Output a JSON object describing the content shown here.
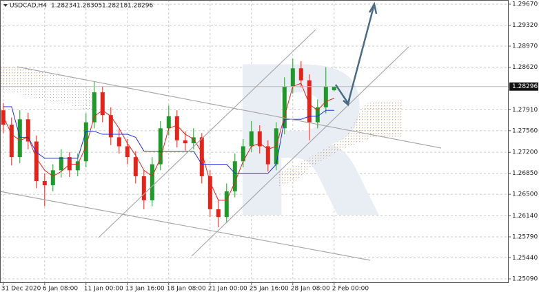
{
  "chart_data": {
    "type": "candlestick",
    "symbol": "USDCAD,H4",
    "up_color": "#1f9a2a",
    "down_color": "#e3241b",
    "xlim": [
      -0.4,
      61.1
    ],
    "xticks": [
      {
        "value": 0,
        "label": "31 Dec 2020"
      },
      {
        "value": 5,
        "label": "6 Jan 08:00"
      },
      {
        "value": 10,
        "label": "11 Jan 00:00"
      },
      {
        "value": 15,
        "label": "13 Jan 16:00"
      },
      {
        "value": 20,
        "label": "18 Jan 08:00"
      },
      {
        "value": 25,
        "label": "21 Jan 00:00"
      },
      {
        "value": 30,
        "label": "25 Jan 16:00"
      },
      {
        "value": 35,
        "label": "28 Jan 08:00"
      },
      {
        "value": 40,
        "label": "2 Feb 00:00"
      }
    ],
    "ylim": [
      1.25021,
      1.29739
    ],
    "yticks": [
      {
        "value": 1.2967,
        "label": "1.29670"
      },
      {
        "value": 1.2932,
        "label": "1.29320"
      },
      {
        "value": 1.2897,
        "label": "1.28970"
      },
      {
        "value": 1.2862,
        "label": "1.28620"
      },
      {
        "value": 1.2791,
        "label": "1.27910"
      },
      {
        "value": 1.2756,
        "label": "1.27560"
      },
      {
        "value": 1.272,
        "label": "1.27200"
      },
      {
        "value": 1.2685,
        "label": "1.26850"
      },
      {
        "value": 1.265,
        "label": "1.26500"
      },
      {
        "value": 1.2614,
        "label": "1.26140"
      },
      {
        "value": 1.2579,
        "label": "1.25790"
      },
      {
        "value": 1.2544,
        "label": "1.25440"
      },
      {
        "value": 1.2509,
        "label": "1.25090"
      }
    ],
    "grid": true,
    "open": [
      1.279,
      1.2766,
      1.2712,
      1.2775,
      1.2738,
      1.2672,
      1.2665,
      1.269,
      1.2712,
      1.269,
      1.2705,
      1.277,
      1.282,
      1.2782,
      1.2745,
      1.273,
      1.2712,
      1.268,
      1.264,
      1.27,
      1.276,
      1.278,
      1.274,
      1.2735,
      1.2745,
      1.268,
      1.2625,
      1.2612,
      1.2655,
      1.2705,
      1.273,
      1.2755,
      1.273,
      1.27,
      1.276,
      1.283,
      1.286,
      1.284,
      1.277,
      1.2795,
      1.28234
    ],
    "high": [
      1.2802,
      1.2778,
      1.279,
      1.2786,
      1.2748,
      1.2685,
      1.27,
      1.2725,
      1.272,
      1.2718,
      1.2785,
      1.2838,
      1.283,
      1.2795,
      1.2758,
      1.2742,
      1.2722,
      1.269,
      1.2712,
      1.2772,
      1.2798,
      1.279,
      1.2755,
      1.276,
      1.2752,
      1.269,
      1.264,
      1.2668,
      1.2718,
      1.2742,
      1.2772,
      1.2765,
      1.274,
      1.277,
      1.2845,
      1.2876,
      1.2872,
      1.285,
      1.2808,
      1.2862,
      1.28305
    ],
    "low": [
      1.2752,
      1.2698,
      1.2702,
      1.2725,
      1.266,
      1.263,
      1.2655,
      1.2678,
      1.2679,
      1.268,
      1.2695,
      1.276,
      1.277,
      1.2732,
      1.2718,
      1.27,
      1.2668,
      1.2625,
      1.263,
      1.269,
      1.2748,
      1.2728,
      1.2722,
      1.2725,
      1.2668,
      1.2612,
      1.2595,
      1.2602,
      1.2645,
      1.2695,
      1.272,
      1.2718,
      1.2688,
      1.269,
      1.275,
      1.2818,
      1.2828,
      1.274,
      1.276,
      1.2785,
      1.28218
    ],
    "close": [
      1.2766,
      1.2712,
      1.2775,
      1.2738,
      1.2672,
      1.2665,
      1.269,
      1.2712,
      1.269,
      1.2705,
      1.277,
      1.282,
      1.2782,
      1.2745,
      1.273,
      1.2712,
      1.268,
      1.264,
      1.27,
      1.276,
      1.278,
      1.274,
      1.2735,
      1.2745,
      1.268,
      1.2625,
      1.2612,
      1.2655,
      1.2705,
      1.273,
      1.2755,
      1.273,
      1.27,
      1.276,
      1.283,
      1.286,
      1.284,
      1.277,
      1.2795,
      1.283,
      1.28296
    ],
    "lines": [
      {
        "color": "#e3241b",
        "values": [
          1.278,
          1.275,
          1.274,
          1.2745,
          1.271,
          1.269,
          1.268,
          1.2688,
          1.27,
          1.27,
          1.273,
          1.278,
          1.279,
          1.278,
          1.276,
          1.2735,
          1.2715,
          1.269,
          1.268,
          1.271,
          1.276,
          1.2765,
          1.275,
          1.2742,
          1.272,
          1.267,
          1.264,
          1.264,
          1.267,
          1.2705,
          1.273,
          1.2735,
          1.2725,
          1.273,
          1.278,
          1.283,
          1.2835,
          1.28,
          1.279,
          1.2805,
          1.281
        ]
      },
      {
        "color": "#1e2fe0",
        "values": [
          1.2796,
          1.2796,
          1.2745,
          1.2745,
          1.272,
          1.271,
          1.271,
          1.271,
          1.271,
          1.271,
          1.2755,
          1.2755,
          1.275,
          1.275,
          1.275,
          1.275,
          1.2745,
          1.2722,
          1.2722,
          1.2722,
          1.2722,
          1.2722,
          1.2722,
          1.2722,
          1.27,
          1.27,
          1.27,
          1.27,
          1.2685,
          1.2685,
          1.2685,
          1.2685,
          1.2685,
          1.27,
          1.2775,
          1.2775,
          1.2775,
          1.278,
          1.278,
          1.279,
          1.279
        ]
      }
    ]
  }
}
